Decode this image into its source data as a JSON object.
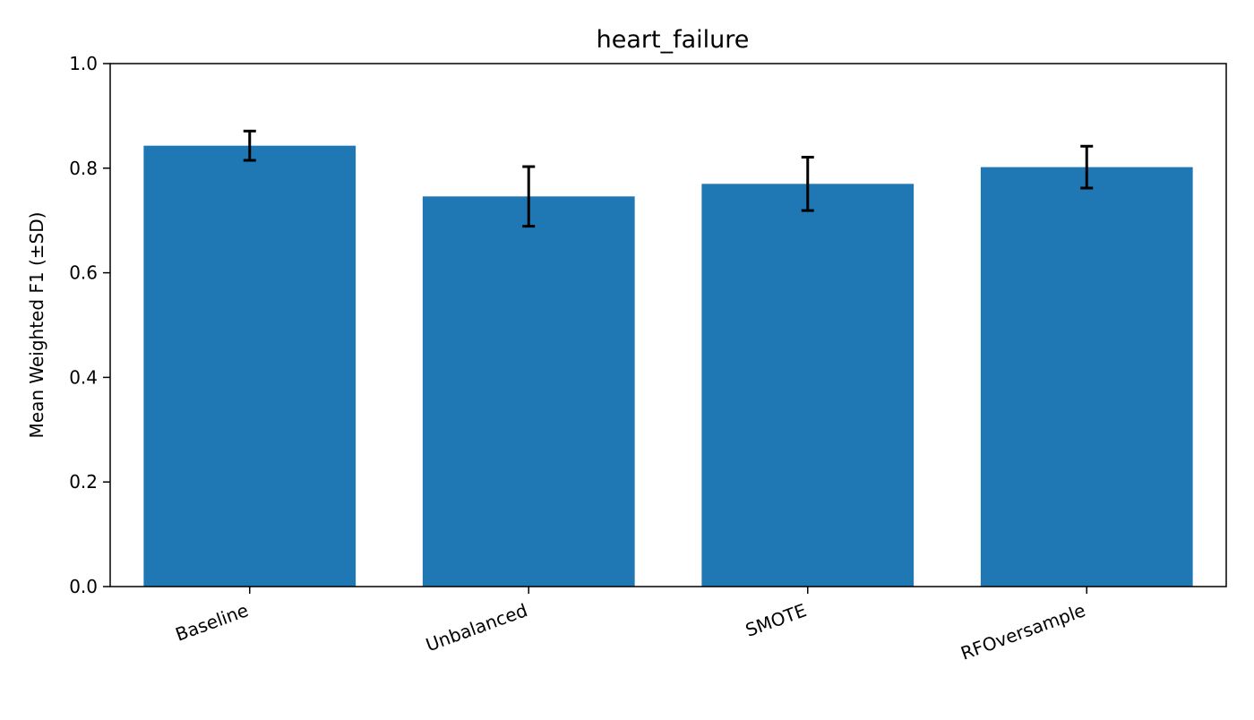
{
  "chart_data": {
    "type": "bar",
    "title": "heart_failure",
    "xlabel": "",
    "ylabel": "Mean Weighted F1 (±SD)",
    "categories": [
      "Baseline",
      "Unbalanced",
      "SMOTE",
      "RFOversample"
    ],
    "values": [
      0.843,
      0.746,
      0.77,
      0.802
    ],
    "errors": [
      0.028,
      0.057,
      0.051,
      0.04
    ],
    "ylim": [
      0.0,
      1.0
    ],
    "yticks": [
      "0.0",
      "0.2",
      "0.4",
      "0.6",
      "0.8",
      "1.0"
    ],
    "grid": false,
    "legend": "none",
    "colors": {
      "bar": "#1f77b4",
      "error": "#000000",
      "axes": "#000000"
    }
  }
}
